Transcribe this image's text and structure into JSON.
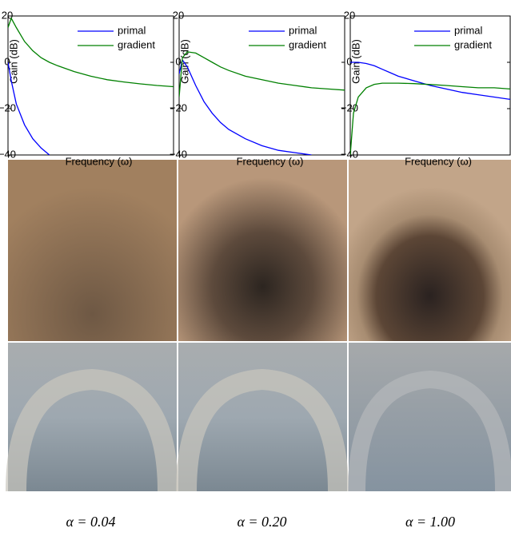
{
  "chart_data": [
    {
      "type": "line",
      "ylabel": "Gain (dB)",
      "xlabel": "Frequency (ω)",
      "caption": "α = 0.04",
      "xlim": [
        0,
        1
      ],
      "ylim": [
        -40,
        20
      ],
      "yticks": [
        {
          "value": -40,
          "label": "−40"
        },
        {
          "value": -20,
          "label": "−20"
        },
        0,
        20
      ],
      "legend": "upper right",
      "x": [
        0,
        0.02,
        0.05,
        0.1,
        0.15,
        0.2,
        0.25,
        0.3,
        0.4,
        0.5,
        0.6,
        0.7,
        0.8,
        0.9,
        1.0
      ],
      "series": [
        {
          "name": "primal",
          "color": "#0000ff",
          "values": [
            0,
            -8,
            -18,
            -27,
            -33,
            -37,
            -40,
            null,
            null,
            null,
            null,
            null,
            null,
            null,
            null
          ]
        },
        {
          "name": "gradient",
          "color": "#008000",
          "values": [
            15,
            19,
            15,
            9,
            5,
            2,
            0,
            -1.5,
            -4,
            -6,
            -7.5,
            -8.5,
            -9.3,
            -10,
            -10.5
          ]
        }
      ]
    },
    {
      "type": "line",
      "ylabel": "Gain (dB)",
      "xlabel": "Frequency (ω)",
      "caption": "α = 0.20",
      "xlim": [
        0,
        1
      ],
      "ylim": [
        -40,
        20
      ],
      "yticks": [
        {
          "value": -40,
          "label": "−40"
        },
        {
          "value": -20,
          "label": "−20"
        },
        0,
        20
      ],
      "legend": "upper right",
      "x": [
        0,
        0.02,
        0.05,
        0.1,
        0.15,
        0.2,
        0.25,
        0.3,
        0.4,
        0.5,
        0.6,
        0.7,
        0.8,
        0.9,
        1.0
      ],
      "series": [
        {
          "name": "primal",
          "color": "#0000ff",
          "values": [
            -5,
            1,
            -2,
            -10,
            -17,
            -22,
            -26,
            -29,
            -33,
            -36,
            -38,
            -39,
            -40,
            null,
            null
          ]
        },
        {
          "name": "gradient",
          "color": "#008000",
          "values": [
            -15,
            2,
            4.5,
            4,
            2,
            0,
            -2,
            -3.5,
            -6,
            -7.5,
            -9,
            -10,
            -11,
            -11.5,
            -12
          ]
        }
      ]
    },
    {
      "type": "line",
      "ylabel": "Gain (dB)",
      "xlabel": "Frequency (ω)",
      "caption": "α = 1.00",
      "xlim": [
        0,
        1
      ],
      "ylim": [
        -40,
        20
      ],
      "yticks": [
        {
          "value": -40,
          "label": "−40"
        },
        {
          "value": -20,
          "label": "−20"
        },
        0,
        20
      ],
      "legend": "upper right",
      "x": [
        0,
        0.02,
        0.05,
        0.1,
        0.15,
        0.2,
        0.25,
        0.3,
        0.4,
        0.5,
        0.6,
        0.7,
        0.8,
        0.9,
        1.0
      ],
      "series": [
        {
          "name": "primal",
          "color": "#0000ff",
          "values": [
            0,
            0,
            0,
            -0.5,
            -1.5,
            -3,
            -4.5,
            -6,
            -8,
            -10,
            -11.5,
            -13,
            -14,
            -15,
            -16
          ]
        },
        {
          "name": "gradient",
          "color": "#008000",
          "values": [
            -40,
            -22,
            -15,
            -11,
            -9.5,
            -9,
            -9,
            -9,
            -9.2,
            -9.6,
            -10,
            -10.5,
            -11,
            -11,
            -11.5
          ]
        }
      ]
    }
  ]
}
